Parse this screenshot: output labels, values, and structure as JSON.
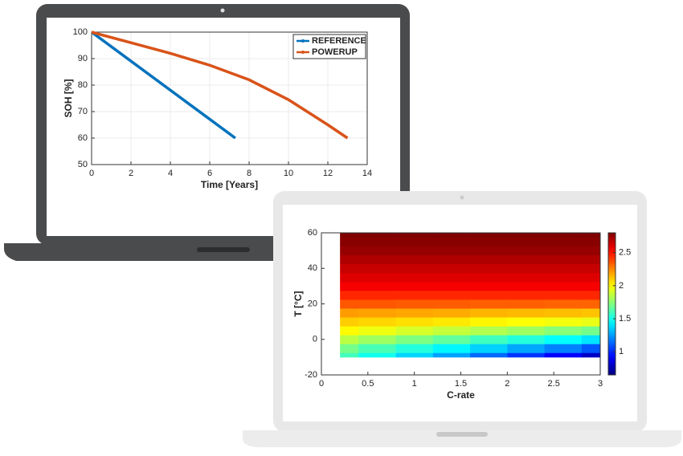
{
  "chart_data": [
    {
      "type": "line",
      "xlabel": "Time [Years]",
      "ylabel": "SOH [%]",
      "xlim": [
        0,
        14
      ],
      "ylim": [
        50,
        100
      ],
      "xticks": [
        0,
        2,
        4,
        6,
        8,
        10,
        12,
        14
      ],
      "yticks": [
        50,
        60,
        70,
        80,
        90,
        100
      ],
      "grid": true,
      "legend": "upper right",
      "series": [
        {
          "name": "REFERENCE",
          "color": "#0072bd",
          "x": [
            0,
            7.3
          ],
          "values": [
            100,
            60
          ]
        },
        {
          "name": "POWERUP",
          "color": "#d95319",
          "x": [
            0,
            2,
            4,
            6,
            8,
            10,
            12,
            13
          ],
          "values": [
            100,
            96,
            92,
            87.5,
            82,
            74.5,
            65,
            60
          ]
        }
      ]
    },
    {
      "type": "heatmap",
      "xlabel": "C-rate",
      "ylabel": "T [°C]",
      "colormap": "jet",
      "xlim": [
        0,
        3
      ],
      "ylim": [
        -20,
        60
      ],
      "xticks": [
        0,
        0.5,
        1,
        1.5,
        2,
        2.5,
        3
      ],
      "yticks": [
        -20,
        0,
        20,
        40,
        60
      ],
      "clim": [
        0.65,
        2.8
      ],
      "cticks": [
        1,
        1.5,
        2,
        2.5
      ],
      "x": [
        0.2,
        0.6,
        1.0,
        1.4,
        1.8,
        2.2,
        2.6,
        3.0
      ],
      "y": [
        -10,
        -5,
        0,
        5,
        10,
        15,
        20,
        25,
        30,
        35,
        40,
        45,
        50,
        55,
        60
      ],
      "z": [
        [
          1.6,
          1.49,
          1.37,
          1.26,
          1.14,
          1.03,
          0.91,
          0.8
        ],
        [
          1.7,
          1.61,
          1.53,
          1.44,
          1.36,
          1.27,
          1.19,
          1.1
        ],
        [
          1.85,
          1.79,
          1.72,
          1.66,
          1.59,
          1.53,
          1.46,
          1.4
        ],
        [
          2.0,
          1.96,
          1.91,
          1.87,
          1.83,
          1.79,
          1.74,
          1.7
        ],
        [
          2.1,
          2.08,
          2.06,
          2.04,
          2.01,
          1.99,
          1.97,
          1.95
        ],
        [
          2.2,
          2.19,
          2.18,
          2.17,
          2.15,
          2.14,
          2.13,
          2.12
        ],
        [
          2.35,
          2.35,
          2.34,
          2.34,
          2.33,
          2.33,
          2.32,
          2.32
        ],
        [
          2.45,
          2.45,
          2.45,
          2.45,
          2.45,
          2.45,
          2.45,
          2.45
        ],
        [
          2.55,
          2.55,
          2.55,
          2.55,
          2.55,
          2.55,
          2.55,
          2.55
        ],
        [
          2.6,
          2.6,
          2.6,
          2.6,
          2.6,
          2.6,
          2.6,
          2.6
        ],
        [
          2.65,
          2.65,
          2.65,
          2.65,
          2.65,
          2.65,
          2.65,
          2.65
        ],
        [
          2.7,
          2.7,
          2.7,
          2.7,
          2.7,
          2.7,
          2.7,
          2.7
        ],
        [
          2.75,
          2.75,
          2.75,
          2.75,
          2.75,
          2.75,
          2.75,
          2.75
        ],
        [
          2.78,
          2.78,
          2.78,
          2.78,
          2.78,
          2.78,
          2.78,
          2.78
        ],
        [
          2.8,
          2.8,
          2.8,
          2.8,
          2.8,
          2.8,
          2.8,
          2.8
        ]
      ]
    }
  ]
}
